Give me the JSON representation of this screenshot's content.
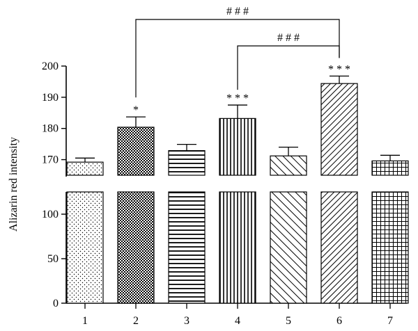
{
  "chart_data": {
    "type": "bar",
    "ylabel": "Alizarin red intensity",
    "xlabel": "",
    "categories": [
      "1",
      "2",
      "3",
      "4",
      "5",
      "6",
      "7"
    ],
    "values": [
      169.2,
      180.4,
      172.9,
      183.2,
      171.2,
      194.4,
      169.6
    ],
    "errors": [
      1.3,
      3.3,
      2.0,
      4.3,
      2.8,
      2.4,
      1.8
    ],
    "axis_break": true,
    "y_segments": [
      {
        "range": [
          0,
          125
        ],
        "ticks": [
          0,
          50,
          100
        ],
        "tick_labels": [
          "0",
          "50",
          "100"
        ]
      },
      {
        "range": [
          165,
          200
        ],
        "ticks": [
          170,
          180,
          190,
          200
        ],
        "tick_labels": [
          "170",
          "180",
          "190",
          "200"
        ]
      }
    ],
    "bar_patterns": [
      "dots",
      "checker",
      "horizontal",
      "vertical",
      "diagonal",
      "diagonal-dense",
      "grid"
    ],
    "significance": [
      "",
      "*",
      "",
      "* * *",
      "",
      "* * *",
      ""
    ],
    "brackets": [
      {
        "from": "2",
        "to": "6",
        "label": "# # #"
      },
      {
        "from": "4",
        "to": "6",
        "label": "# # #"
      }
    ],
    "colors": {
      "stroke": "#000000",
      "background": "#ffffff"
    },
    "grid": false,
    "legend": "none"
  }
}
